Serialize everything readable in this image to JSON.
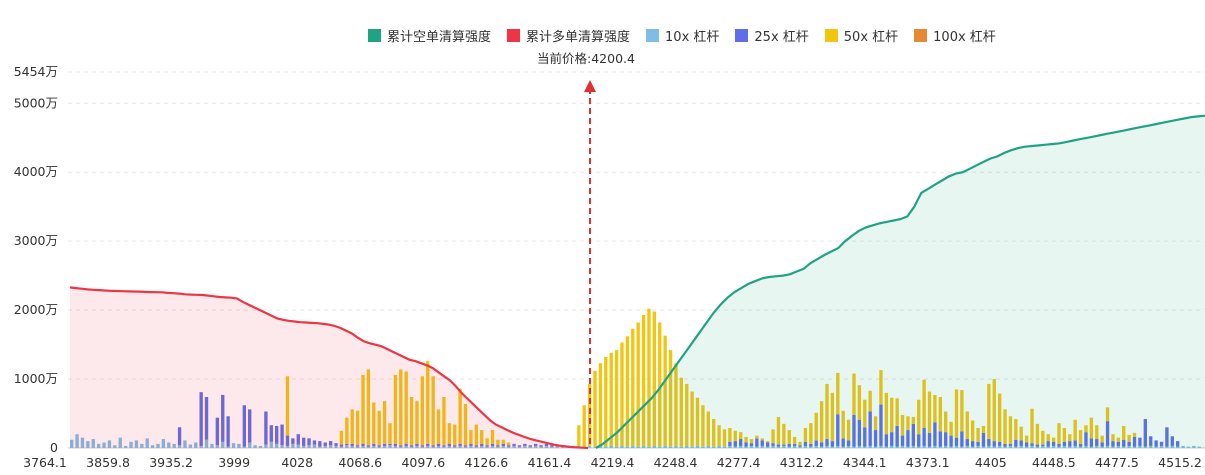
{
  "chart_data": {
    "type": "bar",
    "title": "",
    "xlabel": "",
    "ylabel": "",
    "ylim": [
      0,
      5454
    ],
    "y_ticks": [
      {
        "value": 0,
        "label": "0"
      },
      {
        "value": 1000,
        "label": "1000万"
      },
      {
        "value": 2000,
        "label": "2000万"
      },
      {
        "value": 3000,
        "label": "3000万"
      },
      {
        "value": 4000,
        "label": "4000万"
      },
      {
        "value": 5000,
        "label": "5000万"
      },
      {
        "value": 5454,
        "label": "5454万"
      }
    ],
    "x_ticks": [
      "3764.1",
      "3859.8",
      "3935.2",
      "3999",
      "4028",
      "4068.6",
      "4097.6",
      "4126.6",
      "4161.4",
      "4219.4",
      "4248.4",
      "4277.4",
      "4312.2",
      "4344.1",
      "4373.1",
      "4405",
      "4448.5",
      "4477.5",
      "4515.2"
    ],
    "current_price": 4200.4,
    "current_price_label": "当前价格:4200.4",
    "legend": [
      {
        "name": "累计空单清算强度",
        "color": "#1fa382"
      },
      {
        "name": "累计多单清算强度",
        "color": "#ee3545"
      },
      {
        "name": "10x 杠杆",
        "color": "#7fbce6"
      },
      {
        "name": "25x 杠杆",
        "color": "#5f6ee8"
      },
      {
        "name": "50x 杠杆",
        "color": "#f2c511"
      },
      {
        "name": "100x 杠杆",
        "color": "#e58a33"
      }
    ],
    "series": [
      {
        "name": "10x 杠杆",
        "color": "#7fbce6",
        "values": [
          120,
          200,
          150,
          100,
          130,
          60,
          80,
          110,
          40,
          150,
          30,
          90,
          110,
          60,
          140,
          40,
          60,
          130,
          80,
          60,
          40,
          110,
          50,
          80,
          30,
          120,
          60,
          40,
          90,
          20,
          70,
          60,
          20,
          80,
          40,
          30,
          50,
          90,
          60,
          40,
          30,
          60,
          50,
          30,
          40,
          50,
          20,
          30,
          40,
          30,
          20,
          40,
          30,
          20,
          30,
          20,
          30,
          20,
          30,
          40,
          30,
          20,
          30,
          20,
          30,
          20,
          30,
          20,
          30,
          20,
          30,
          20,
          30,
          20,
          30,
          20,
          30,
          20,
          30,
          20,
          30,
          20,
          30,
          20,
          30,
          20,
          30,
          20,
          30,
          20,
          30,
          20,
          30,
          20,
          30,
          20,
          30,
          20,
          30,
          20,
          30,
          20,
          30,
          20,
          30,
          20,
          30,
          20,
          30,
          20,
          30,
          20,
          30,
          20,
          30,
          20,
          30,
          20,
          30,
          20,
          30,
          20,
          30,
          20,
          30,
          20,
          30,
          20,
          30,
          20,
          30,
          20,
          30,
          20,
          30,
          20,
          30,
          20,
          30,
          20,
          30,
          20,
          30,
          20,
          30,
          20,
          30,
          20,
          30,
          20,
          30,
          20,
          30,
          20,
          30,
          20,
          30,
          20,
          30,
          20,
          30,
          20,
          30,
          20,
          30,
          20,
          30,
          20,
          30,
          20,
          30,
          20,
          30,
          20,
          30,
          20,
          30,
          20,
          30,
          20,
          30,
          20,
          30,
          20,
          30,
          20,
          30,
          20,
          30,
          20,
          30,
          20,
          30,
          20,
          30,
          20,
          30,
          20,
          30,
          20,
          30,
          20,
          30,
          20,
          30,
          20,
          30,
          20,
          30,
          20
        ]
      },
      {
        "name": "25x 杠杆",
        "color": "#5f6ee8",
        "values": [
          0,
          0,
          0,
          0,
          0,
          0,
          0,
          0,
          0,
          0,
          0,
          0,
          0,
          0,
          0,
          0,
          0,
          0,
          0,
          0,
          260,
          0,
          0,
          0,
          780,
          620,
          0,
          400,
          680,
          440,
          0,
          0,
          600,
          480,
          0,
          0,
          480,
          240,
          260,
          300,
          150,
          80,
          150,
          120,
          100,
          60,
          80,
          50,
          60,
          40,
          30,
          20,
          30,
          20,
          30,
          20,
          30,
          20,
          30,
          20,
          30,
          20,
          30,
          20,
          30,
          20,
          30,
          20,
          30,
          20,
          30,
          20,
          30,
          20,
          30,
          20,
          30,
          20,
          30,
          20,
          30,
          20,
          30,
          20,
          30,
          20,
          30,
          20,
          30,
          20,
          0,
          0,
          0,
          0,
          0,
          0,
          0,
          0,
          0,
          0,
          0,
          0,
          0,
          0,
          0,
          0,
          0,
          0,
          0,
          0,
          0,
          0,
          0,
          0,
          0,
          0,
          0,
          0,
          0,
          0,
          0,
          0,
          60,
          80,
          100,
          60,
          40,
          120,
          80,
          60,
          40,
          30,
          20,
          40,
          30,
          20,
          60,
          40,
          80,
          60,
          100,
          80,
          460,
          120,
          80,
          460,
          380,
          280,
          500,
          240,
          600,
          180,
          200,
          300,
          150,
          240,
          320,
          180,
          260,
          200,
          340,
          220,
          200,
          160,
          120,
          220,
          100,
          80,
          60,
          200,
          100,
          80,
          60,
          40,
          30,
          100,
          80,
          60,
          40,
          30,
          20,
          80,
          60,
          40,
          60,
          80,
          80,
          40,
          200,
          120,
          100,
          60,
          360,
          80,
          60,
          100,
          60,
          140,
          120,
          400,
          140,
          90,
          60,
          280,
          140,
          80
        ]
      },
      {
        "name": "50x 杠杆",
        "color": "#f2c511",
        "values": [
          0,
          0,
          0,
          0,
          0,
          0,
          0,
          0,
          0,
          0,
          0,
          0,
          0,
          0,
          0,
          0,
          0,
          0,
          0,
          0,
          0,
          0,
          0,
          0,
          0,
          0,
          0,
          0,
          0,
          0,
          0,
          0,
          0,
          0,
          0,
          0,
          0,
          0,
          0,
          0,
          860,
          0,
          0,
          0,
          0,
          0,
          0,
          0,
          0,
          0,
          200,
          380,
          500,
          500,
          1000,
          1100,
          600,
          500,
          620,
          300,
          1000,
          1100,
          1050,
          700,
          620,
          1000,
          1200,
          1000,
          500,
          700,
          300,
          300,
          800,
          600,
          200,
          300,
          200,
          100,
          200,
          80,
          60,
          40,
          0,
          0,
          0,
          0,
          0,
          0,
          0,
          0,
          0,
          0,
          0,
          0,
          300,
          600,
          900,
          1100,
          1200,
          1300,
          1350,
          1400,
          1500,
          1600,
          1700,
          1800,
          1900,
          2000,
          1950,
          1800,
          1600,
          1400,
          1200,
          1000,
          900,
          800,
          700,
          600,
          500,
          400,
          300,
          250,
          200,
          150,
          100,
          80,
          60,
          40,
          30,
          20,
          200,
          400,
          300,
          200,
          100,
          50,
          200,
          300,
          400,
          600,
          800,
          700,
          600,
          400,
          300,
          600,
          500,
          400,
          300,
          200,
          500,
          600,
          500,
          400,
          300,
          200,
          100,
          500,
          700,
          600,
          400,
          500,
          300,
          200,
          700,
          600,
          400,
          300,
          200,
          100,
          800,
          900,
          700,
          500,
          400,
          300,
          200,
          100,
          500,
          300,
          200,
          100,
          60,
          300,
          200,
          100,
          300,
          200,
          100,
          300,
          200,
          100,
          200,
          100,
          60,
          200,
          100,
          60
        ]
      },
      {
        "name": "100x 杠杆",
        "color": "#e58a33",
        "values": [
          0,
          0,
          0,
          0,
          0,
          0,
          0,
          0,
          0,
          0,
          0,
          0,
          0,
          0,
          0,
          0,
          0,
          0,
          0,
          0,
          0,
          0,
          0,
          0,
          0,
          0,
          0,
          0,
          0,
          0,
          0,
          0,
          0,
          0,
          0,
          0,
          0,
          0,
          0,
          0,
          0,
          0,
          0,
          0,
          0,
          0,
          0,
          0,
          0,
          0,
          0,
          0,
          0,
          0,
          0,
          0,
          0,
          0,
          0,
          0,
          0,
          0,
          0,
          0,
          0,
          0,
          0,
          0,
          0,
          0,
          0,
          0,
          0,
          0,
          0,
          0,
          0,
          0,
          0,
          0,
          0,
          0,
          0,
          0,
          0,
          0,
          0,
          0,
          0,
          0,
          0,
          0,
          0,
          0,
          0,
          0,
          0,
          0,
          0,
          0,
          0,
          0,
          0,
          0,
          0,
          0,
          0,
          0,
          0,
          0,
          0,
          0,
          0,
          0,
          0,
          0,
          0,
          0,
          0,
          0,
          0,
          0,
          0,
          0,
          0,
          0,
          0,
          0,
          0,
          0,
          0,
          0,
          0,
          0,
          0,
          0,
          0,
          0,
          0,
          0,
          0,
          0,
          0,
          0,
          0,
          0,
          0,
          0,
          0,
          0,
          0,
          0,
          0,
          0,
          0,
          0,
          0,
          0,
          0,
          0,
          0,
          0,
          0,
          0,
          0,
          0,
          0,
          0,
          0,
          0,
          0,
          0,
          0,
          0,
          0,
          0,
          0,
          0,
          0,
          0,
          0,
          0,
          0,
          0,
          0,
          0,
          0,
          0,
          0,
          0,
          0,
          0,
          0,
          0,
          0,
          0,
          0,
          0,
          0,
          0,
          0,
          0,
          0,
          0,
          0,
          0,
          0,
          0,
          0,
          0
        ]
      },
      {
        "name": "累计多单清算强度",
        "color": "#ee3545",
        "type": "cumulative-long"
      },
      {
        "name": "累计空单清算强度",
        "color": "#1fa382",
        "type": "cumulative-short"
      }
    ],
    "long_curve": [
      2330,
      2320,
      2310,
      2300,
      2295,
      2290,
      2285,
      2280,
      2278,
      2275,
      2272,
      2270,
      2268,
      2265,
      2262,
      2260,
      2258,
      2250,
      2245,
      2240,
      2230,
      2225,
      2222,
      2220,
      2210,
      2200,
      2190,
      2185,
      2180,
      2170,
      2120,
      2080,
      2040,
      2000,
      1960,
      1920,
      1880,
      1860,
      1845,
      1835,
      1825,
      1820,
      1815,
      1810,
      1800,
      1790,
      1770,
      1740,
      1700,
      1660,
      1600,
      1550,
      1520,
      1500,
      1480,
      1440,
      1400,
      1360,
      1320,
      1280,
      1260,
      1230,
      1200,
      1160,
      1100,
      1040,
      980,
      900,
      800,
      720,
      640,
      560,
      480,
      400,
      340,
      300,
      260,
      220,
      190,
      160,
      130,
      110,
      90,
      70,
      50,
      35,
      25,
      15,
      8,
      4,
      0
    ],
    "short_curve": [
      0,
      60,
      140,
      220,
      320,
      420,
      520,
      620,
      720,
      840,
      980,
      1120,
      1260,
      1400,
      1540,
      1680,
      1820,
      1960,
      2080,
      2180,
      2260,
      2320,
      2380,
      2420,
      2460,
      2480,
      2490,
      2500,
      2520,
      2560,
      2600,
      2680,
      2740,
      2800,
      2850,
      2900,
      3000,
      3080,
      3150,
      3200,
      3230,
      3260,
      3280,
      3300,
      3320,
      3360,
      3500,
      3700,
      3760,
      3820,
      3880,
      3940,
      3980,
      4000,
      4050,
      4100,
      4150,
      4200,
      4230,
      4280,
      4320,
      4350,
      4370,
      4380,
      4390,
      4400,
      4410,
      4420,
      4440,
      4460,
      4480,
      4500,
      4520,
      4540,
      4560,
      4580,
      4600,
      4620,
      4640,
      4660,
      4680,
      4700,
      4720,
      4740,
      4760,
      4780,
      4800,
      4810,
      4820
    ]
  }
}
